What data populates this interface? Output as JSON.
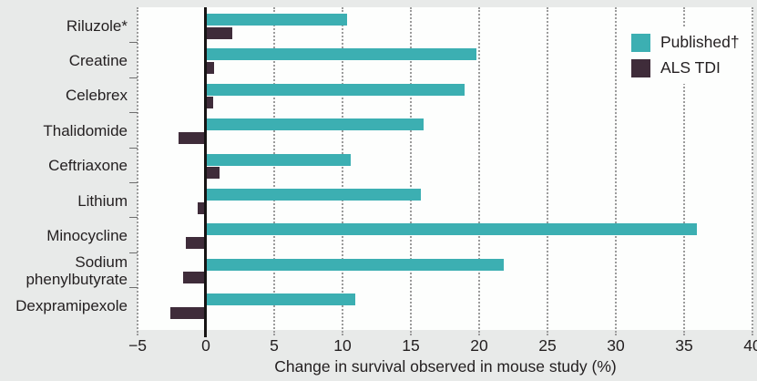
{
  "chart_data": {
    "type": "bar",
    "orientation": "horizontal",
    "xlabel": "Change in survival observed in mouse study (%)",
    "xlim": [
      -5,
      40
    ],
    "xticks": [
      -5,
      0,
      5,
      10,
      15,
      20,
      25,
      30,
      35,
      40
    ],
    "grid": "vertical dotted gridlines every 5%, solid black line at 0",
    "legend_position": "top-right inside plot",
    "categories": [
      "Riluzole*",
      "Creatine",
      "Celebrex",
      "Thalidomide",
      "Ceftriaxone",
      "Lithium",
      "Minocycline",
      "Sodium phenylbutyrate",
      "Dexpramipexole"
    ],
    "series": [
      {
        "name": "Published†",
        "color": "#3cafb2",
        "values": [
          10.3,
          19.8,
          18.9,
          15.9,
          10.6,
          15.7,
          35.9,
          21.8,
          10.9
        ]
      },
      {
        "name": "ALS TDI",
        "color": "#3f2c3a",
        "values": [
          1.9,
          0.6,
          0.5,
          -2.0,
          1.0,
          -0.6,
          -1.5,
          -1.7,
          -2.6
        ]
      }
    ]
  },
  "colors": {
    "background": "#e8eae9",
    "plot_background": "#fdfefd",
    "published_bar": "#3cafb2",
    "als_tdi_bar": "#3f2c3a",
    "zero_axis": "#161414",
    "gridline": "#9b9b9b",
    "text": "#231f20"
  }
}
